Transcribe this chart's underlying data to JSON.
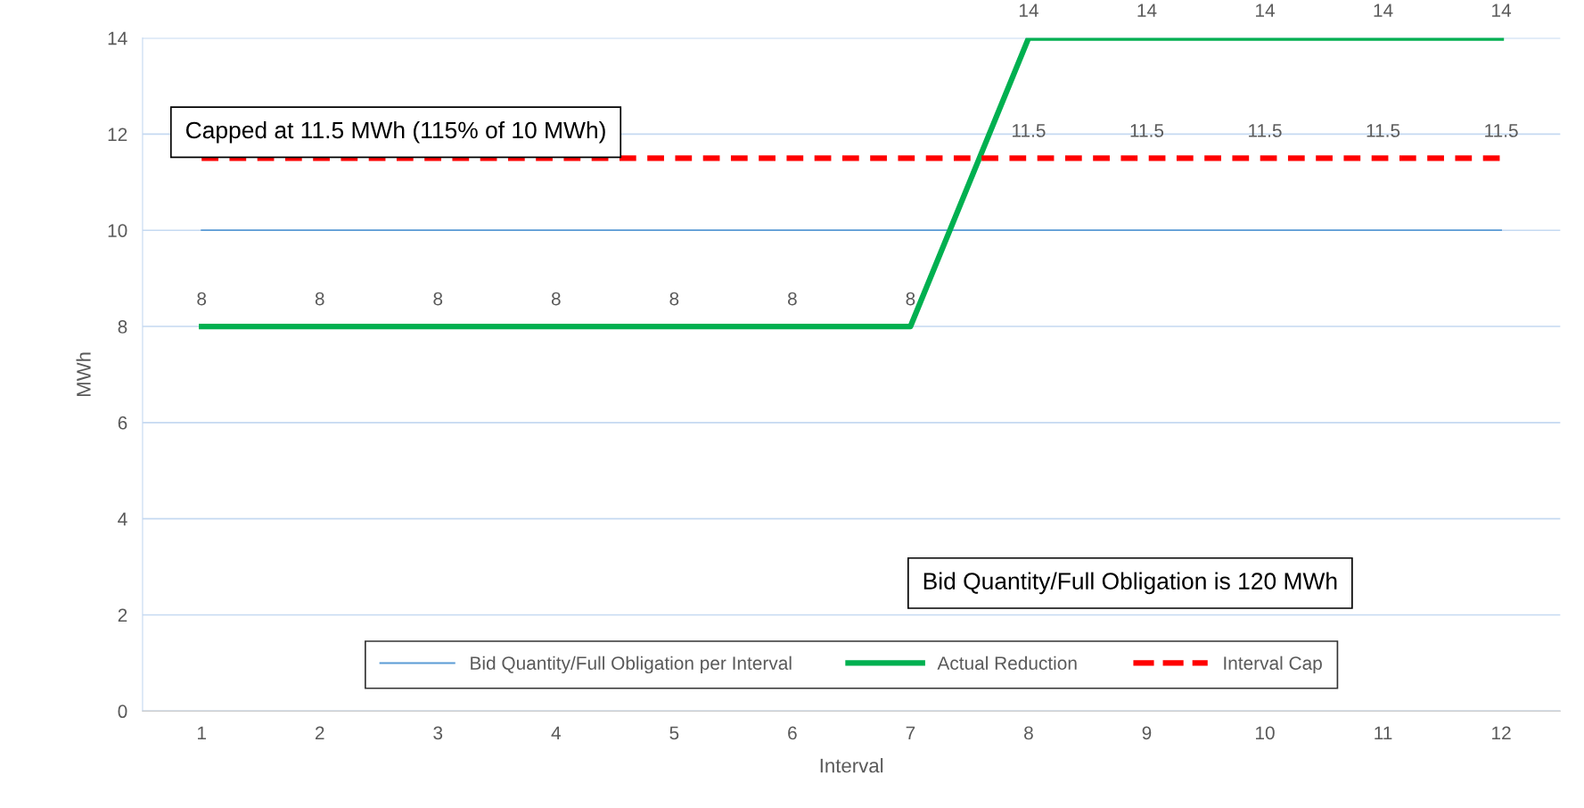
{
  "chart_data": {
    "type": "line",
    "xlabel": "Interval",
    "ylabel": "MWh",
    "categories": [
      "1",
      "2",
      "3",
      "4",
      "5",
      "6",
      "7",
      "8",
      "9",
      "10",
      "11",
      "12"
    ],
    "series": [
      {
        "name": "Bid Quantity/Full Obligation per Interval",
        "color": "#5b9bd5",
        "values": [
          10,
          10,
          10,
          10,
          10,
          10,
          10,
          10,
          10,
          10,
          10,
          10
        ],
        "line_style": "solid"
      },
      {
        "name": "Actual Reduction",
        "color": "#00b050",
        "values": [
          8,
          8,
          8,
          8,
          8,
          8,
          8,
          14,
          14,
          14,
          14,
          14
        ],
        "line_style": "solid",
        "value_labels": [
          "8",
          "8",
          "8",
          "8",
          "8",
          "8",
          "8",
          "14",
          "14",
          "14",
          "14",
          "14"
        ]
      },
      {
        "name": "Interval Cap",
        "color": "#ff0000",
        "values": [
          11.5,
          11.5,
          11.5,
          11.5,
          11.5,
          11.5,
          11.5,
          11.5,
          11.5,
          11.5,
          11.5,
          11.5
        ],
        "line_style": "dashed",
        "value_labels": [
          null,
          null,
          null,
          null,
          null,
          null,
          null,
          "11.5",
          "11.5",
          "11.5",
          "11.5",
          "11.5"
        ]
      }
    ],
    "ylim": [
      0,
      14
    ],
    "yticks": [
      0,
      2,
      4,
      6,
      8,
      10,
      12,
      14
    ],
    "grid": "y",
    "legend": "bottom",
    "marker": "none",
    "annotations": [
      "Capped at 11.5 MWh (115% of 10 MWh)",
      "Bid Quantity/Full Obligation is 120 MWh"
    ]
  }
}
